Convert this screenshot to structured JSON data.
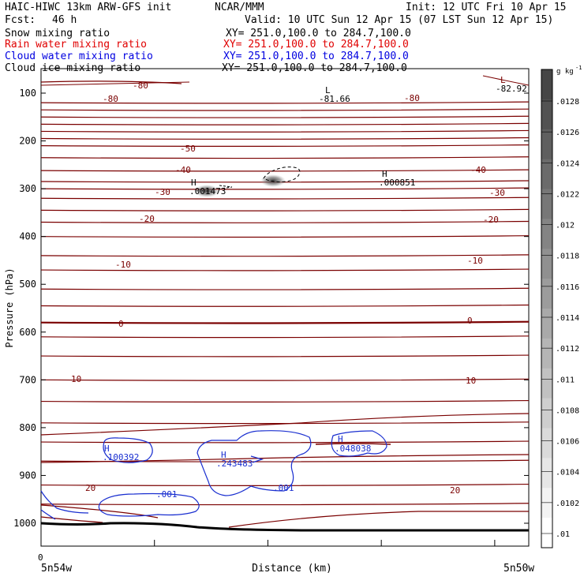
{
  "header": {
    "model": "HAIC-HIWC 13km ARW-GFS init",
    "org": "NCAR/MMM",
    "init": "Init: 12 UTC Fri 10 Apr 15",
    "fcst_label": "Fcst:",
    "fcst_value": "46 h",
    "valid": "Valid: 10 UTC Sun 12 Apr 15 (07 LST Sun 12 Apr 15)"
  },
  "fields": [
    {
      "name": "Snow mixing ratio",
      "xy": "XY= 251.0,100.0 to 284.7,100.0",
      "color": "#000000"
    },
    {
      "name": "Rain water mixing ratio",
      "xy": "XY= 251.0,100.0 to 284.7,100.0",
      "color": "#e00000"
    },
    {
      "name": "Cloud water mixing ratio",
      "xy": "XY= 251.0,100.0 to 284.7,100.0",
      "color": "#0000e0"
    },
    {
      "name": "Cloud ice mixing ratio",
      "xy": "XY= 251.0,100.0 to 284.7,100.0",
      "color": "#000000"
    }
  ],
  "colors": {
    "temperature": "#7a0000",
    "cloud_water": "#1a2fd0",
    "terrain": "#000000"
  },
  "chart_data": {
    "type": "contour",
    "xlabel": "Distance (km)",
    "ylabel": "Pressure (hPa)",
    "x_start_tick": "0",
    "x_left_label": "5n54w",
    "x_right_label": "5n50w",
    "y_ticks": [
      "100",
      "200",
      "300",
      "400",
      "500",
      "600",
      "700",
      "800",
      "900",
      "1000"
    ],
    "y_scale": "pressure",
    "ylim": [
      1050,
      50
    ],
    "temperature_contours": [
      {
        "label": "-80",
        "p": 100
      },
      {
        "label": "-50",
        "p": 210
      },
      {
        "label": "-40",
        "p": 260
      },
      {
        "label": "-30",
        "p": 300
      },
      {
        "label": "-20",
        "p": 345
      },
      {
        "label": "-10",
        "p": 440
      },
      {
        "label": "0",
        "p": 580
      },
      {
        "label": "10",
        "p": 700
      },
      {
        "label": "20",
        "p": 920
      }
    ],
    "extrema": [
      {
        "kind": "L",
        "value": "-81.66",
        "location": "top-center"
      },
      {
        "kind": "L",
        "value": "-82.92",
        "location": "top-right"
      },
      {
        "kind": "H",
        "value": ".001473",
        "location": "upper-left"
      },
      {
        "kind": "H",
        "value": ".000851",
        "location": "upper-right"
      }
    ],
    "cloud_water_labels": [
      {
        "kind": "H",
        "value": ".100392"
      },
      {
        "kind": "H",
        "value": ".243483"
      },
      {
        "kind": "H",
        "value": ".048038"
      },
      {
        "kind": "",
        "value": ".001"
      },
      {
        "kind": "",
        "value": ".001"
      }
    ],
    "colorbar": {
      "unit": "g kg",
      "unit_exp": "-1",
      "ticks": [
        ".0128",
        ".0126",
        ".0124",
        ".0122",
        ".012",
        ".0118",
        ".0116",
        ".0114",
        ".0112",
        ".011",
        ".0108",
        ".0106",
        ".0104",
        ".0102",
        ".01"
      ]
    }
  }
}
